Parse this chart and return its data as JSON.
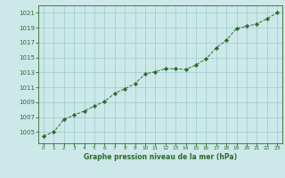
{
  "hours": [
    0,
    1,
    2,
    3,
    4,
    5,
    6,
    7,
    8,
    9,
    10,
    11,
    12,
    13,
    14,
    15,
    16,
    17,
    18,
    19,
    20,
    21,
    22,
    23
  ],
  "pressure": [
    1004.5,
    1005.0,
    1006.7,
    1007.3,
    1007.8,
    1008.5,
    1009.1,
    1010.2,
    1010.8,
    1011.5,
    1012.8,
    1013.1,
    1013.5,
    1013.5,
    1013.4,
    1014.0,
    1014.8,
    1016.3,
    1017.3,
    1018.9,
    1019.2,
    1019.5,
    1020.2,
    1021.0
  ],
  "line_color": "#2d6a2d",
  "marker_color": "#2d6a2d",
  "bg_color": "#cce8e8",
  "grid_color": "#99cccc",
  "xlabel": "Graphe pression niveau de la mer (hPa)",
  "xlabel_color": "#2d6a2d",
  "tick_color": "#2d6a2d",
  "ylim_min": 1003.5,
  "ylim_max": 1022.0,
  "xtick_labels": [
    "0",
    "1",
    "2",
    "3",
    "4",
    "5",
    "6",
    "7",
    "8",
    "9",
    "10",
    "11",
    "12",
    "13",
    "14",
    "15",
    "16",
    "17",
    "18",
    "19",
    "20",
    "21",
    "22",
    "23"
  ],
  "ytick_values": [
    1005,
    1007,
    1009,
    1011,
    1013,
    1015,
    1017,
    1019,
    1021
  ]
}
